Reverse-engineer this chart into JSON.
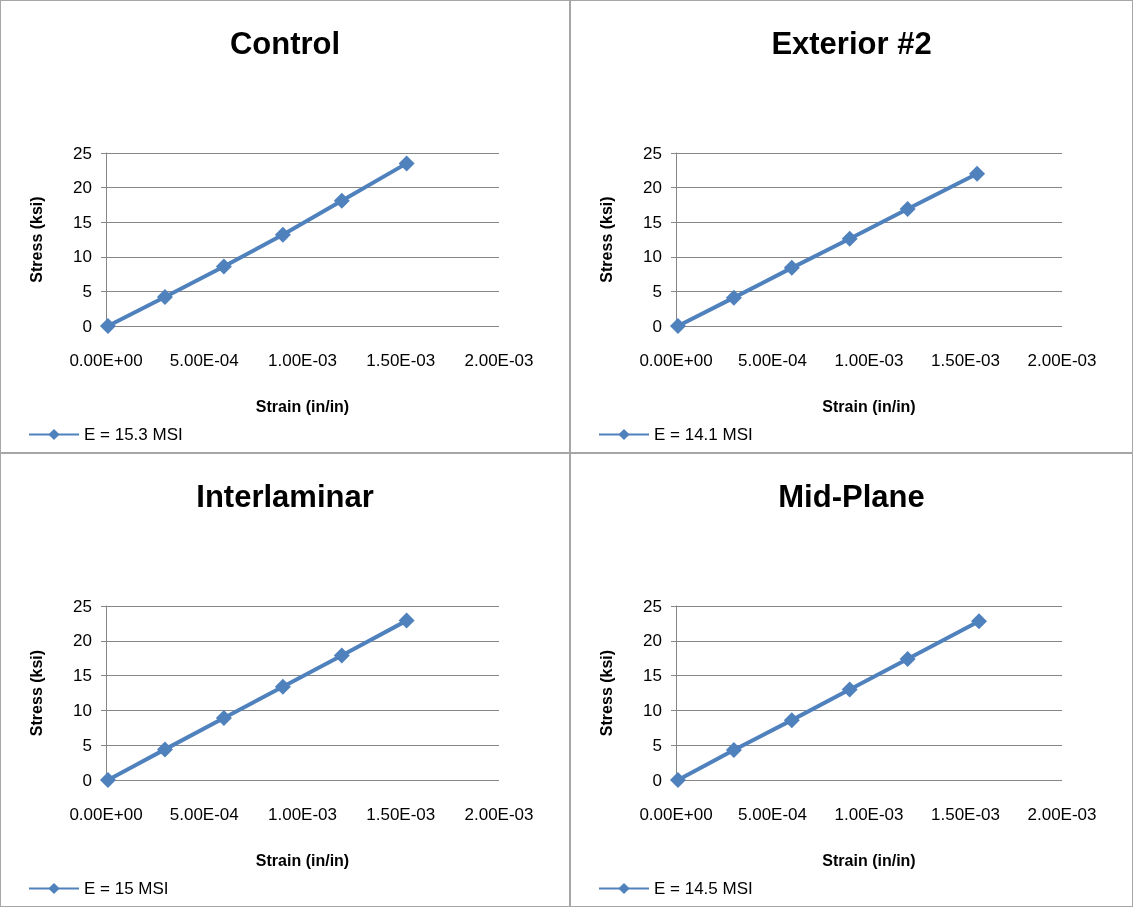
{
  "chart_data": [
    {
      "type": "line",
      "title": "Control",
      "xlabel": "Strain (in/in)",
      "ylabel": "Stress (ksi)",
      "series": [
        {
          "name": "E = 15.3 MSI",
          "color": "#4f81bd",
          "x": [
            1e-05,
            0.0003,
            0.0006,
            0.0009,
            0.0012,
            0.00153
          ],
          "values": [
            0,
            4.2,
            8.6,
            13.2,
            18.1,
            23.5
          ]
        }
      ],
      "xlim": [
        0,
        0.002
      ],
      "xticks": [
        {
          "value": 0,
          "label": "0.00E+00"
        },
        {
          "value": 0.0005,
          "label": "5.00E-04"
        },
        {
          "value": 0.001,
          "label": "1.00E-03"
        },
        {
          "value": 0.0015,
          "label": "1.50E-03"
        },
        {
          "value": 0.002,
          "label": "2.00E-03"
        }
      ],
      "ylim": [
        0,
        25
      ],
      "yticks": [
        0,
        5,
        10,
        15,
        20,
        25
      ],
      "grid": "y",
      "legend": "bottom left",
      "marker": "diamond",
      "line_style": "solid"
    },
    {
      "type": "line",
      "title": "Exterior #2",
      "xlabel": "Strain (in/in)",
      "ylabel": "Stress (ksi)",
      "series": [
        {
          "name": "E = 14.1 MSI",
          "color": "#4f81bd",
          "x": [
            1e-05,
            0.0003,
            0.0006,
            0.0009,
            0.0012,
            0.00156
          ],
          "values": [
            0,
            4.1,
            8.4,
            12.6,
            16.9,
            22
          ]
        }
      ],
      "xlim": [
        0,
        0.002
      ],
      "xticks": [
        {
          "value": 0,
          "label": "0.00E+00"
        },
        {
          "value": 0.0005,
          "label": "5.00E-04"
        },
        {
          "value": 0.001,
          "label": "1.00E-03"
        },
        {
          "value": 0.0015,
          "label": "1.50E-03"
        },
        {
          "value": 0.002,
          "label": "2.00E-03"
        }
      ],
      "ylim": [
        0,
        25
      ],
      "yticks": [
        0,
        5,
        10,
        15,
        20,
        25
      ],
      "grid": "y",
      "legend": "bottom left",
      "marker": "diamond",
      "line_style": "solid"
    },
    {
      "type": "line",
      "title": "Interlaminar",
      "xlabel": "Strain (in/in)",
      "ylabel": "Stress (ksi)",
      "series": [
        {
          "name": "E = 15 MSI",
          "color": "#4f81bd",
          "x": [
            1e-05,
            0.0003,
            0.0006,
            0.0009,
            0.0012,
            0.00153
          ],
          "values": [
            0,
            4.4,
            8.9,
            13.4,
            17.9,
            22.9
          ]
        }
      ],
      "xlim": [
        0,
        0.002
      ],
      "xticks": [
        {
          "value": 0,
          "label": "0.00E+00"
        },
        {
          "value": 0.0005,
          "label": "5.00E-04"
        },
        {
          "value": 0.001,
          "label": "1.00E-03"
        },
        {
          "value": 0.0015,
          "label": "1.50E-03"
        },
        {
          "value": 0.002,
          "label": "2.00E-03"
        }
      ],
      "ylim": [
        0,
        25
      ],
      "yticks": [
        0,
        5,
        10,
        15,
        20,
        25
      ],
      "grid": "y",
      "legend": "bottom left",
      "marker": "diamond",
      "line_style": "solid"
    },
    {
      "type": "line",
      "title": "Mid-Plane",
      "xlabel": "Strain (in/in)",
      "ylabel": "Stress (ksi)",
      "series": [
        {
          "name": "E = 14.5 MSI",
          "color": "#4f81bd",
          "x": [
            1e-05,
            0.0003,
            0.0006,
            0.0009,
            0.0012,
            0.00157
          ],
          "values": [
            0,
            4.3,
            8.6,
            13,
            17.4,
            22.8
          ]
        }
      ],
      "xlim": [
        0,
        0.002
      ],
      "xticks": [
        {
          "value": 0,
          "label": "0.00E+00"
        },
        {
          "value": 0.0005,
          "label": "5.00E-04"
        },
        {
          "value": 0.001,
          "label": "1.00E-03"
        },
        {
          "value": 0.0015,
          "label": "1.50E-03"
        },
        {
          "value": 0.002,
          "label": "2.00E-03"
        }
      ],
      "ylim": [
        0,
        25
      ],
      "yticks": [
        0,
        5,
        10,
        15,
        20,
        25
      ],
      "grid": "y",
      "legend": "bottom left",
      "marker": "diamond",
      "line_style": "solid"
    }
  ]
}
